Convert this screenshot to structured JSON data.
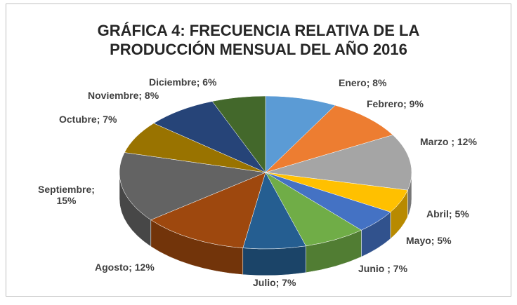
{
  "chart_data": {
    "type": "pie",
    "title": "GRÁFICA 4: FRECUENCIA RELATIVA DE LA PRODUCCIÓN MENSUAL DEL AÑO 2016",
    "categories": [
      "Enero",
      "Febrero",
      "Marzo",
      "Abril",
      "Mayo",
      "Junio",
      "Julio",
      "Agosto",
      "Septiembre",
      "Octubre",
      "Noviembre",
      "Diciembre"
    ],
    "values": [
      8,
      9,
      12,
      5,
      5,
      7,
      7,
      12,
      15,
      7,
      8,
      6
    ],
    "value_labels": [
      "; 8%",
      "; 9%",
      " ; 12%",
      "; 5%",
      "; 5%",
      " ; 7%",
      "; 7%",
      "; 12%",
      "; 15%",
      "; 7%",
      "; 8%",
      "; 6%"
    ],
    "colors": [
      "#5b9bd5",
      "#ed7d31",
      "#a5a5a5",
      "#ffc000",
      "#4472c4",
      "#70ad47",
      "#255e91",
      "#9e480e",
      "#636363",
      "#997300",
      "#264478",
      "#43682b"
    ]
  }
}
